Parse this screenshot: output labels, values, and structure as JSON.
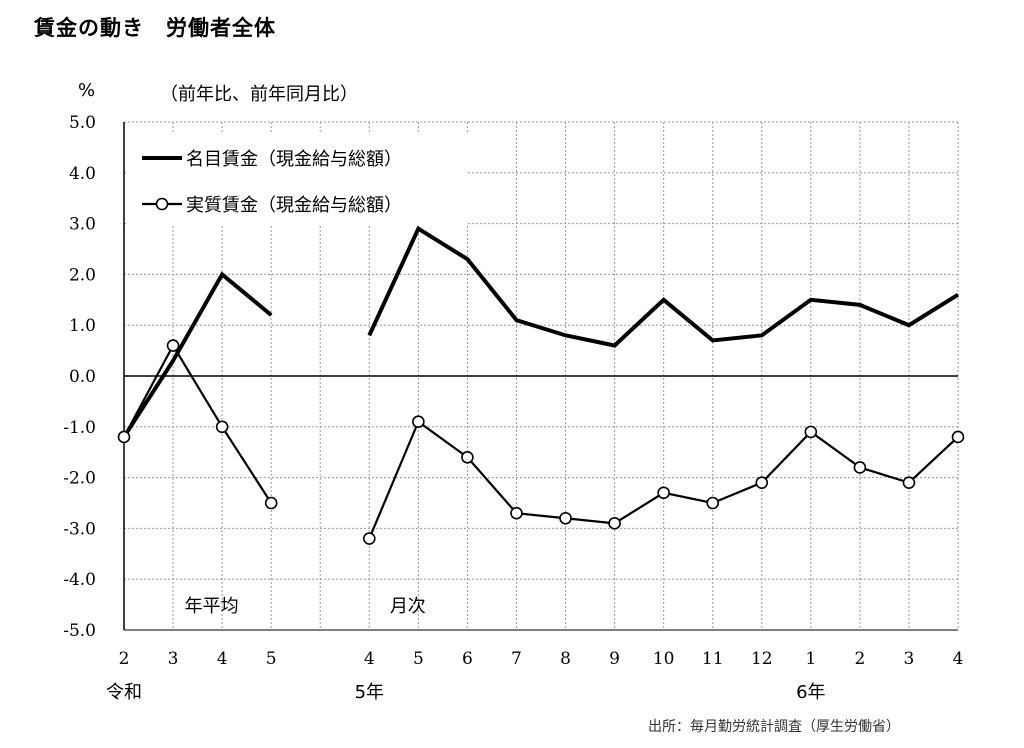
{
  "title": "賃金の動き　労働者全体",
  "unit_label": "%",
  "subtitle": "（前年比、前年同月比）",
  "source": "出所：毎月勤労統計調査（厚生労働省）",
  "chart_data": {
    "type": "line",
    "ylim": [
      -5.0,
      5.0
    ],
    "yticks": [
      "5.0",
      "4.0",
      "3.0",
      "2.0",
      "1.0",
      "0.0",
      "-1.0",
      "-2.0",
      "-3.0",
      "-4.0",
      "-5.0"
    ],
    "categories": [
      "2",
      "3",
      "4",
      "5",
      "",
      "4",
      "5",
      "6",
      "7",
      "8",
      "9",
      "10",
      "11",
      "12",
      "1",
      "2",
      "3",
      "4"
    ],
    "group_labels": [
      {
        "text": "令和",
        "index": 0
      },
      {
        "text": "5年",
        "index": 5
      },
      {
        "text": "6年",
        "index": 14
      }
    ],
    "annotations": [
      {
        "text": "年平均",
        "index": 1.5
      },
      {
        "text": "月次",
        "index": 5.5
      }
    ],
    "grid": true,
    "legend_position": "top-left",
    "series": [
      {
        "name": "名目賃金（現金給与総額）",
        "marker": "none",
        "values": [
          -1.2,
          0.3,
          2.0,
          1.2,
          null,
          0.8,
          2.9,
          2.3,
          1.1,
          0.8,
          0.6,
          1.5,
          0.7,
          0.8,
          1.5,
          1.4,
          1.0,
          1.6
        ]
      },
      {
        "name": "実質賃金（現金給与総額）",
        "marker": "circle",
        "values": [
          -1.2,
          0.6,
          -1.0,
          -2.5,
          null,
          -3.2,
          -0.9,
          -1.6,
          -2.7,
          -2.8,
          -2.9,
          -2.3,
          -2.5,
          -2.1,
          -1.1,
          -1.8,
          -2.1,
          -1.2
        ]
      }
    ]
  }
}
